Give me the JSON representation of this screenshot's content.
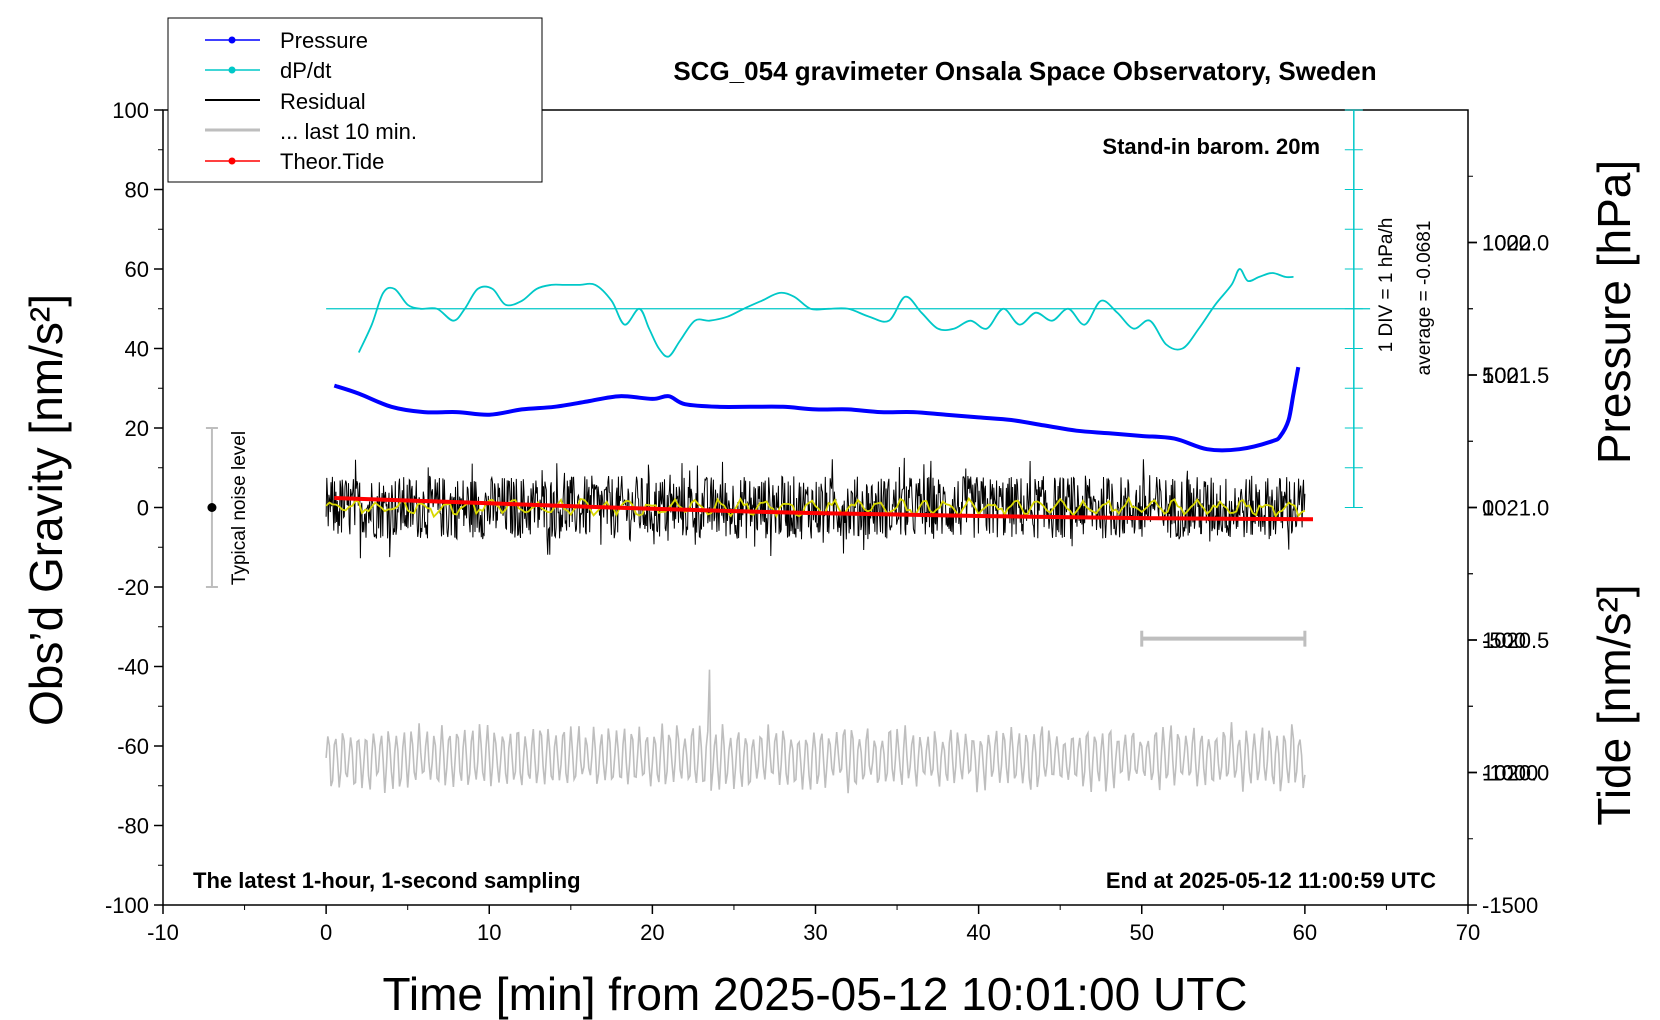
{
  "chart_data": {
    "type": "line",
    "title": "SCG_054 gravimeter Onsala Space Observatory, Sweden",
    "xlabel": "Time [min] from 2025-05-12 10:01:00 UTC",
    "ylabel_left": "Obs’d Gravity [nm/s²]",
    "ylabel_right_pressure": "Pressure [hPa]",
    "ylabel_right_tide": "Tide [nm/s²]",
    "xlim": [
      -10,
      70
    ],
    "ylim": [
      -100,
      100
    ],
    "pressure_lim": [
      1019.5,
      1022.5
    ],
    "tide_lim": [
      -1500,
      1500
    ],
    "x_ticks": [
      "-10",
      "0",
      "10",
      "20",
      "30",
      "40",
      "50",
      "60",
      "70"
    ],
    "y_ticks": [
      "-100",
      "-80",
      "-60",
      "-40",
      "-20",
      "0",
      "20",
      "40",
      "60",
      "80",
      "100"
    ],
    "pressure_ticks": [
      "1020.0",
      "1020.5",
      "1021.0",
      "1021.5",
      "1022.0"
    ],
    "tide_ticks": [
      "-1500",
      "-1000",
      "-500",
      "0",
      "500",
      "1000"
    ],
    "annotations": {
      "barometer": "Stand-in barom. 20m",
      "latest": "The latest 1-hour, 1-second sampling",
      "end": "End at 2025-05-12 11:00:59 UTC",
      "div": "1 DIV = 1 hPa/h",
      "average": "average = -0.0681",
      "noise": "Typical noise level"
    },
    "legend": [
      {
        "name": "Pressure",
        "color": "#0000ff",
        "marker": true
      },
      {
        "name": "dP/dt",
        "color": "#00c8c8",
        "marker": true
      },
      {
        "name": "Residual",
        "color": "#000000",
        "marker": false
      },
      {
        "name": "... last 10 min.",
        "color": "#bebebe",
        "marker": false
      },
      {
        "name": "Theor.Tide",
        "color": "#ff0000",
        "marker": true
      }
    ],
    "series": [
      {
        "name": "Pressure",
        "axis": "pressure",
        "color": "#0000ff",
        "x": [
          0.5,
          2,
          4,
          6,
          8,
          10,
          12,
          14,
          16,
          18,
          20,
          21,
          22,
          24,
          26,
          28,
          30,
          32,
          34,
          36,
          38,
          40,
          42,
          44,
          46,
          48,
          50,
          52,
          54,
          56,
          58,
          58.5,
          59,
          59.3,
          59.6
        ],
        "y": [
          1021.46,
          1021.43,
          1021.38,
          1021.36,
          1021.36,
          1021.35,
          1021.37,
          1021.38,
          1021.4,
          1021.42,
          1021.41,
          1021.42,
          1021.39,
          1021.38,
          1021.38,
          1021.38,
          1021.37,
          1021.37,
          1021.36,
          1021.36,
          1021.35,
          1021.34,
          1021.33,
          1021.31,
          1021.29,
          1021.28,
          1021.27,
          1021.26,
          1021.22,
          1021.22,
          1021.25,
          1021.27,
          1021.33,
          1021.43,
          1021.53
        ]
      },
      {
        "name": "dP/dt",
        "axis": "left",
        "color": "#00c8c8",
        "x": [
          2,
          2.8,
          3.5,
          4.2,
          5,
          5.8,
          6.8,
          7.8,
          8.5,
          9.3,
          10.2,
          11,
          12,
          12.9,
          13.8,
          14.6,
          15.5,
          16.5,
          17.5,
          18.3,
          19.2,
          19.8,
          20.4,
          21,
          21.7,
          22.6,
          23.5,
          24.6,
          25.6,
          26.7,
          27.8,
          28.7,
          29.7,
          30.8,
          32,
          33.3,
          34.5,
          35.5,
          36.5,
          37.5,
          38.5,
          39.5,
          40.5,
          41.5,
          42.5,
          43.5,
          44.5,
          45.5,
          46.5,
          47.5,
          48.5,
          49.5,
          50.5,
          51.5,
          52.5,
          53.5,
          54.5,
          55.5,
          56,
          56.5,
          57.2,
          58,
          58.8,
          59.3
        ],
        "y": [
          39,
          46,
          54,
          55,
          51,
          50,
          50,
          47,
          50,
          55,
          55,
          51,
          52,
          55,
          56,
          56,
          56,
          56,
          52,
          46,
          50,
          45,
          40,
          38,
          42,
          47,
          47,
          48,
          50,
          52,
          54,
          53,
          50,
          50,
          50,
          48,
          47,
          53,
          49,
          45,
          45,
          47,
          45,
          50,
          46,
          49,
          47,
          50,
          46,
          52,
          49,
          45,
          47,
          41,
          40,
          45,
          51,
          56,
          60,
          57,
          58,
          59,
          58,
          58
        ]
      },
      {
        "name": "Residual",
        "axis": "left",
        "color": "#000000",
        "x_range": [
          0,
          60
        ],
        "noise_amplitude": 8
      },
      {
        "name": "... last 10 min.",
        "axis": "left",
        "color": "#bebebe",
        "x_range": [
          0,
          60
        ],
        "baseline": -63,
        "amplitude": 9
      },
      {
        "name": "Theor.Tide",
        "axis": "tide",
        "color": "#ff0000",
        "x": [
          0.5,
          10,
          20,
          30,
          40,
          50,
          60.5
        ],
        "y": [
          36,
          16,
          -5,
          -21,
          -32,
          -40,
          -44
        ]
      }
    ]
  }
}
